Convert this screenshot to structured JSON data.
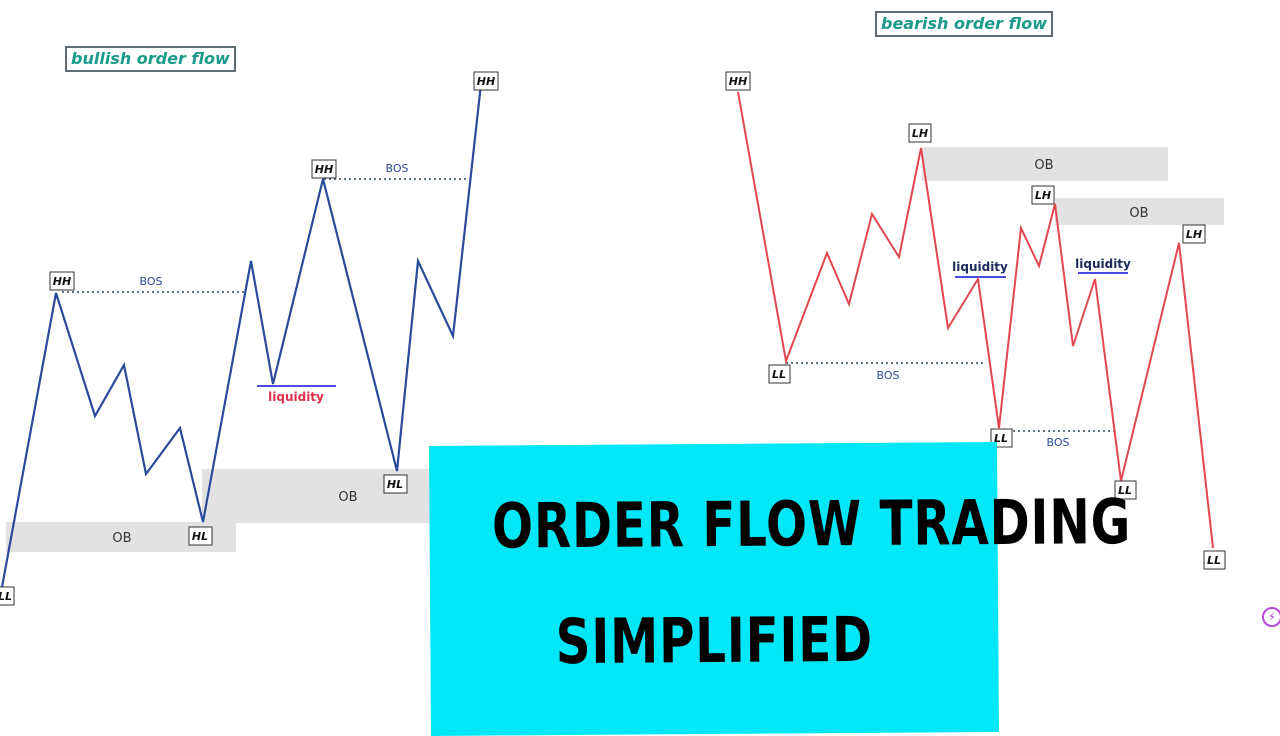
{
  "titles": {
    "bullish": "bullish order flow",
    "bearish": "bearish order flow"
  },
  "banner": {
    "line1": "ORDER FLOW TRADING",
    "line2": "SIMPLIFIED"
  },
  "colors": {
    "bullish_line": "#2a4a9a",
    "bearish_line": "#e2474f",
    "ob_zone": "#e2e2e2",
    "title_text": "#1a9a8a",
    "banner_bg": "#00e8f8",
    "liquidity_bull": "#e0304a",
    "liquidity_bear": "#1a2a5a",
    "bos_text": "#2a4a9a"
  },
  "bullish": {
    "swing_labels": [
      "LL",
      "HH",
      "HL",
      "HH",
      "HL",
      "HH"
    ],
    "bos_labels": [
      "BOS",
      "BOS"
    ],
    "ob_labels": [
      "OB",
      "OB"
    ],
    "liquidity_label": "liquidity"
  },
  "bearish": {
    "swing_labels": [
      "HH",
      "LL",
      "LH",
      "LH",
      "LL",
      "LL",
      "LH",
      "LL"
    ],
    "bos_labels": [
      "BOS",
      "BOS"
    ],
    "ob_labels": [
      "OB",
      "OB"
    ],
    "liquidity_labels": [
      "liquidity",
      "liquidity"
    ]
  },
  "corner_icon": "lightning-circle-icon"
}
